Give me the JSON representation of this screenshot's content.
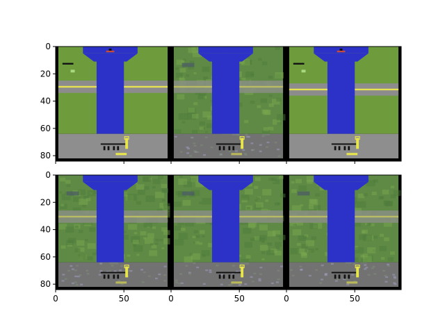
{
  "chart_data": {
    "type": "image-grid",
    "rows": 2,
    "cols": 3,
    "image_size": [
      84,
      84
    ],
    "xlim": [
      0,
      84
    ],
    "ylim": [
      84,
      0
    ],
    "x_ticks": [
      0,
      50
    ],
    "y_ticks": [
      0,
      20,
      40,
      60,
      80
    ],
    "x_tick_labels": [
      "0",
      "50"
    ],
    "y_tick_labels": [
      "0",
      "20",
      "40",
      "60",
      "80"
    ],
    "panels": [
      {
        "row": 0,
        "col": 0,
        "kind": "clean",
        "road_y": [
          25,
          34
        ],
        "plane": true,
        "ground_y": 64
      },
      {
        "row": 0,
        "col": 1,
        "kind": "noisy",
        "road_y": [
          25,
          34
        ],
        "plane": false,
        "ground_y": 64
      },
      {
        "row": 0,
        "col": 2,
        "kind": "clean",
        "road_y": [
          27,
          36
        ],
        "plane": true,
        "ground_y": 64
      },
      {
        "row": 1,
        "col": 0,
        "kind": "noisy",
        "road_y": [
          26,
          35
        ],
        "plane": false,
        "ground_y": 64
      },
      {
        "row": 1,
        "col": 1,
        "kind": "noisy",
        "road_y": [
          26,
          35
        ],
        "plane": false,
        "ground_y": 64
      },
      {
        "row": 1,
        "col": 2,
        "kind": "noisy",
        "road_y": [
          26,
          35
        ],
        "plane": false,
        "ground_y": 64
      }
    ],
    "colors": {
      "grass": "#6e9c3c",
      "grass_noisy": "#5f8a45",
      "river": "#2c32c8",
      "road": "#8c8c8c",
      "road_noisy": "#8a8e84",
      "road_line": "#e6e250",
      "ground": "#8e8e8e",
      "hud_yellow": "#e8e64a",
      "border": "#000000"
    }
  }
}
